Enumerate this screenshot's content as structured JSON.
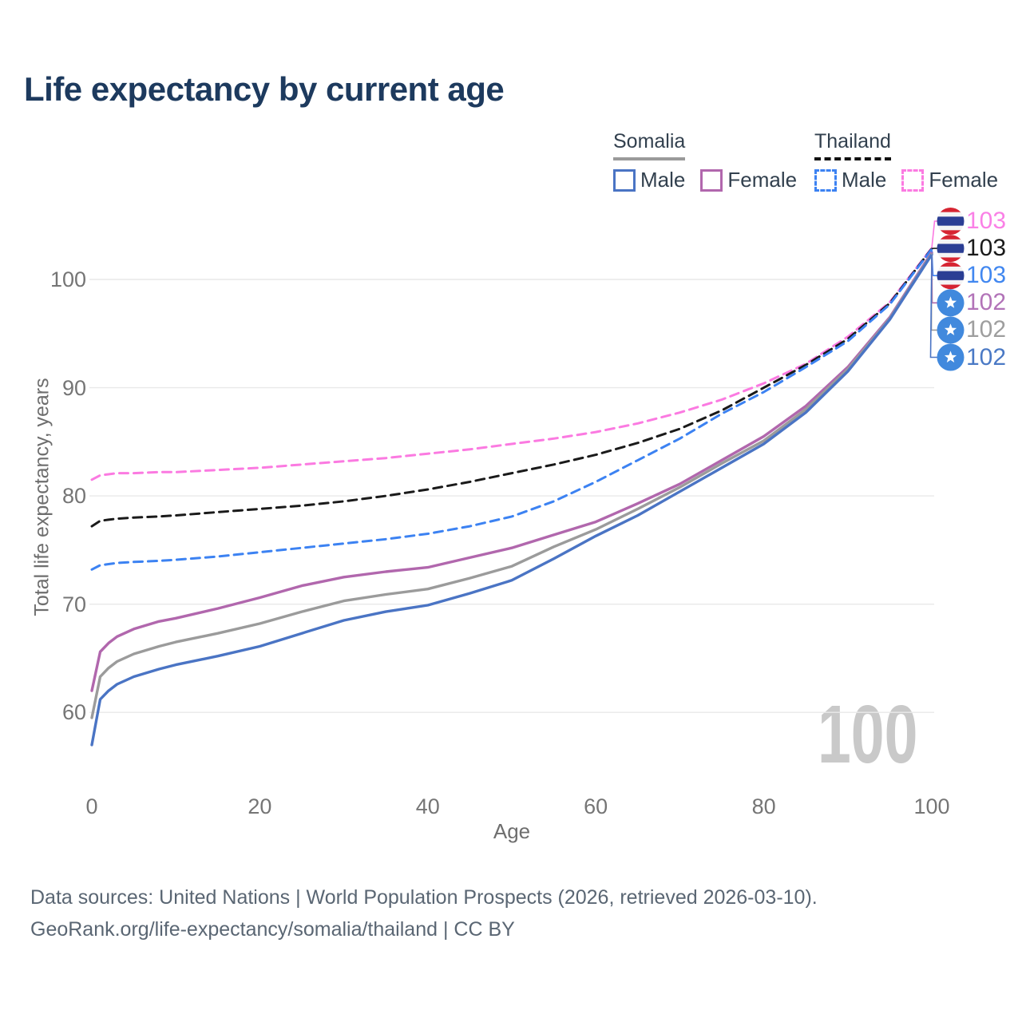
{
  "title": "Life expectancy by current age",
  "legend": {
    "somalia": {
      "name": "Somalia",
      "male_label": "Male",
      "female_label": "Female",
      "underline_color": "#9a9a9a"
    },
    "thailand": {
      "name": "Thailand",
      "male_label": "Male",
      "female_label": "Female",
      "underline_color": "#111111"
    }
  },
  "watermark": "100",
  "footer": {
    "line1": "Data sources: United Nations | World Population Prospects (2026, retrieved 2026-03-10).",
    "line2": "GeoRank.org/life-expectancy/somalia/thailand | CC BY"
  },
  "colors": {
    "title": "#1d3a5e",
    "grid": "#e9e9e9",
    "tick_text": "#757575",
    "axis_title_text": "#6e6e6e",
    "watermark_text": "#c9c9c9",
    "footer_text": "#5a6673"
  },
  "chart_data": {
    "type": "line",
    "title": "Life expectancy by current age",
    "xlabel": "Age",
    "ylabel": "Total life expectancy, years",
    "xlim": [
      0,
      100
    ],
    "ylim": [
      56,
      104.5
    ],
    "grid": "horizontal",
    "legend_position": "top-right",
    "xticks": [
      0,
      20,
      40,
      60,
      80,
      100
    ],
    "yticks": [
      60,
      70,
      80,
      90,
      100
    ],
    "x": [
      0,
      1,
      2,
      3,
      5,
      8,
      10,
      15,
      20,
      25,
      30,
      35,
      40,
      45,
      50,
      55,
      60,
      65,
      70,
      75,
      80,
      85,
      90,
      95,
      100
    ],
    "series": [
      {
        "name": "Thailand Female",
        "country": "Thailand",
        "sex": "female",
        "style": "dashed",
        "color": "#fb7ae1",
        "end_label": "103",
        "end_label_color": "#fa80e6",
        "flag": "thailand",
        "row": 1,
        "values": [
          81.5,
          81.9,
          82.0,
          82.1,
          82.1,
          82.2,
          82.2,
          82.4,
          82.6,
          82.9,
          83.2,
          83.5,
          83.9,
          84.3,
          84.8,
          85.3,
          85.9,
          86.7,
          87.7,
          88.9,
          90.4,
          92.2,
          94.7,
          97.9,
          102.9
        ]
      },
      {
        "name": "Thailand Both sexes",
        "country": "Thailand",
        "sex": "both",
        "style": "dashed",
        "color": "#1a1a1a",
        "end_label": "103",
        "end_label_color": "#1a1a1a",
        "flag": "thailand",
        "row": 2,
        "values": [
          77.2,
          77.7,
          77.8,
          77.9,
          78.0,
          78.1,
          78.2,
          78.5,
          78.8,
          79.1,
          79.5,
          80.0,
          80.6,
          81.3,
          82.1,
          82.9,
          83.8,
          84.9,
          86.2,
          87.9,
          90.0,
          92.1,
          94.5,
          97.8,
          102.85
        ]
      },
      {
        "name": "Thailand Male",
        "country": "Thailand",
        "sex": "male",
        "style": "dashed",
        "color": "#3c82f2",
        "end_label": "103",
        "end_label_color": "#4187f0",
        "flag": "thailand",
        "row": 3,
        "values": [
          73.2,
          73.6,
          73.7,
          73.8,
          73.9,
          74.0,
          74.1,
          74.4,
          74.8,
          75.2,
          75.6,
          76.0,
          76.5,
          77.2,
          78.1,
          79.5,
          81.3,
          83.3,
          85.3,
          87.6,
          89.6,
          91.9,
          94.3,
          97.7,
          102.8
        ]
      },
      {
        "name": "Somalia Female",
        "country": "Somalia",
        "sex": "female",
        "style": "solid",
        "color": "#b167ad",
        "end_label": "102",
        "end_label_color": "#b273b8",
        "flag": "somalia",
        "row": 4,
        "values": [
          62.0,
          65.6,
          66.4,
          67.0,
          67.7,
          68.4,
          68.7,
          69.6,
          70.6,
          71.7,
          72.5,
          73.0,
          73.4,
          74.3,
          75.2,
          76.4,
          77.6,
          79.3,
          81.1,
          83.3,
          85.5,
          88.3,
          91.9,
          96.5,
          102.5
        ]
      },
      {
        "name": "Somalia Both sexes",
        "country": "Somalia",
        "sex": "both",
        "style": "solid",
        "color": "#9b9b9b",
        "end_label": "102",
        "end_label_color": "#9e9e9e",
        "flag": "somalia",
        "row": 5,
        "values": [
          59.5,
          63.3,
          64.1,
          64.7,
          65.4,
          66.1,
          66.5,
          67.3,
          68.2,
          69.3,
          70.3,
          70.9,
          71.4,
          72.4,
          73.5,
          75.3,
          76.9,
          78.8,
          80.8,
          83.0,
          85.1,
          88.0,
          91.7,
          96.4,
          102.4
        ]
      },
      {
        "name": "Somalia Male",
        "country": "Somalia",
        "sex": "male",
        "style": "solid",
        "color": "#4a74c4",
        "end_label": "102",
        "end_label_color": "#4a79c5",
        "flag": "somalia",
        "row": 6,
        "values": [
          57.0,
          61.2,
          62.0,
          62.6,
          63.3,
          64.0,
          64.4,
          65.2,
          66.1,
          67.3,
          68.5,
          69.3,
          69.9,
          71.0,
          72.2,
          74.2,
          76.3,
          78.2,
          80.4,
          82.6,
          84.8,
          87.7,
          91.5,
          96.3,
          102.3
        ]
      }
    ],
    "flag_colors": {
      "somalia": {
        "bg": "#4189dd",
        "star": "#ffffff"
      },
      "thailand": {
        "red": "#d62431",
        "white": "#f4f4f4",
        "blue": "#2b3e94"
      }
    }
  }
}
